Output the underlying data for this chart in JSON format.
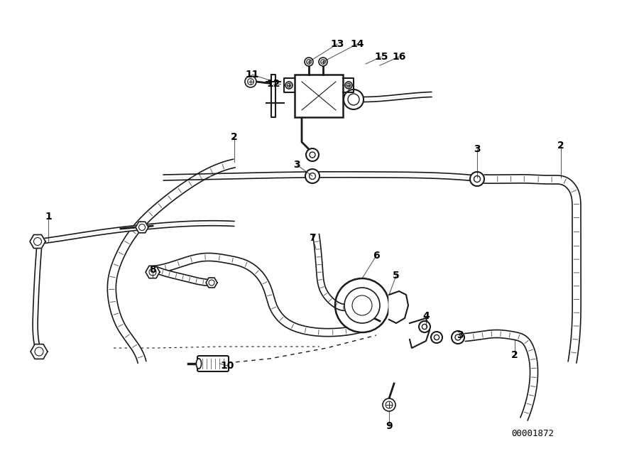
{
  "bg_color": "#ffffff",
  "line_color": "#1a1a1a",
  "diagram_number": "00001872",
  "fig_width": 9.0,
  "fig_height": 6.35,
  "dpi": 100,
  "labels": [
    [
      "1",
      68,
      305
    ],
    [
      "2",
      330,
      193
    ],
    [
      "2",
      790,
      205
    ],
    [
      "2",
      725,
      500
    ],
    [
      "3",
      418,
      232
    ],
    [
      "3",
      672,
      210
    ],
    [
      "3",
      648,
      472
    ],
    [
      "4",
      600,
      445
    ],
    [
      "5",
      558,
      388
    ],
    [
      "6",
      530,
      360
    ],
    [
      "7",
      440,
      335
    ],
    [
      "8",
      215,
      380
    ],
    [
      "9",
      548,
      600
    ],
    [
      "10",
      320,
      515
    ],
    [
      "11",
      355,
      105
    ],
    [
      "12",
      385,
      118
    ],
    [
      "13",
      475,
      62
    ],
    [
      "14",
      503,
      62
    ],
    [
      "15",
      537,
      80
    ],
    [
      "16",
      562,
      80
    ]
  ]
}
